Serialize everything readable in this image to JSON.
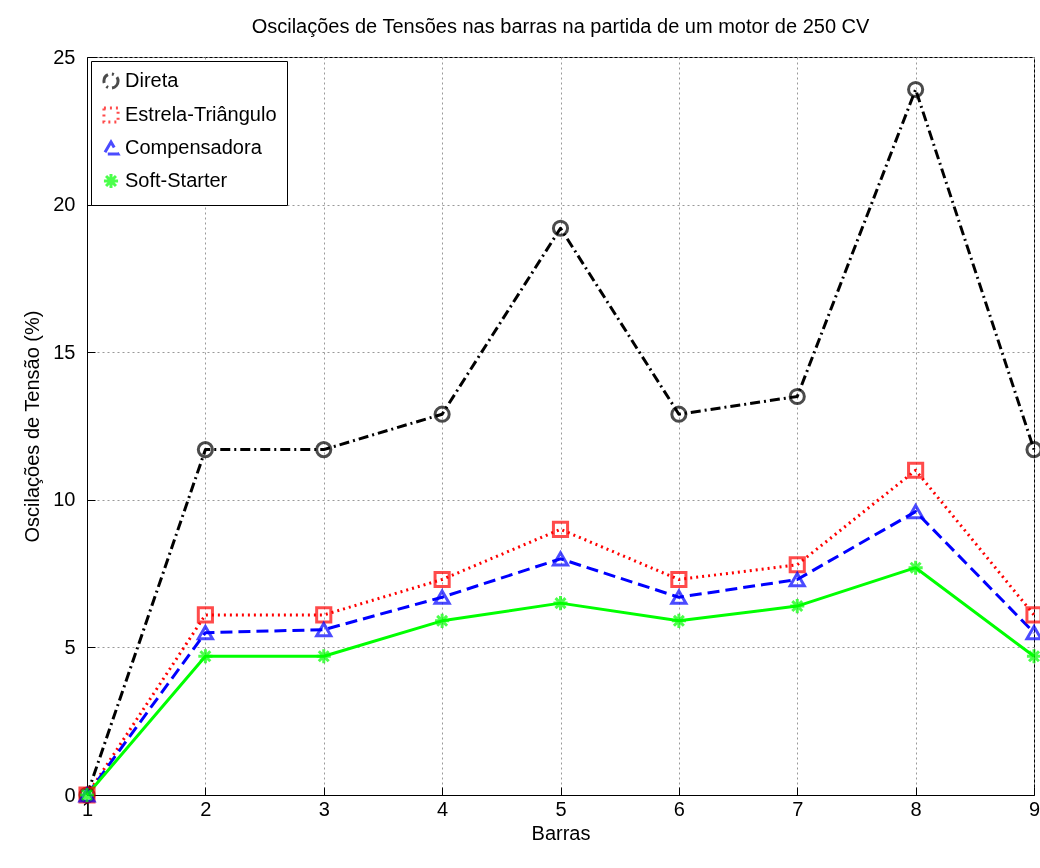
{
  "chart_data": {
    "type": "line",
    "title": "Oscilações de Tensões nas barras na partida de um motor de 250 CV",
    "xlabel": "Barras",
    "ylabel": "Oscilações de Tensão (%)",
    "x": [
      1,
      2,
      3,
      4,
      5,
      6,
      7,
      8,
      9
    ],
    "xlim": [
      1,
      9
    ],
    "xticks": [
      1,
      2,
      3,
      4,
      5,
      6,
      7,
      8,
      9
    ],
    "ylim": [
      0,
      25
    ],
    "yticks": [
      0,
      5,
      10,
      15,
      20,
      25
    ],
    "grid": true,
    "legend": "top left",
    "series": [
      {
        "name": "Direta",
        "color": "#000000",
        "marker": "circle",
        "line_style": "dashdot",
        "values": [
          0,
          11.7,
          11.7,
          12.9,
          19.2,
          12.9,
          13.5,
          23.9,
          11.7
        ]
      },
      {
        "name": "Estrela-Triângulo",
        "color": "#ff0000",
        "marker": "square",
        "line_style": "dotted",
        "values": [
          0,
          6.1,
          6.1,
          7.3,
          9.0,
          7.3,
          7.8,
          11.0,
          6.1
        ]
      },
      {
        "name": "Compensadora",
        "color": "#0000ff",
        "marker": "triangle",
        "line_style": "dashed",
        "values": [
          0,
          5.5,
          5.6,
          6.7,
          8.0,
          6.7,
          7.3,
          9.6,
          5.5
        ]
      },
      {
        "name": "Soft-Starter",
        "color": "#00ff00",
        "marker": "cross",
        "line_style": "solid",
        "values": [
          0,
          4.7,
          4.7,
          5.9,
          6.5,
          5.9,
          6.4,
          7.7,
          4.7
        ]
      }
    ]
  }
}
